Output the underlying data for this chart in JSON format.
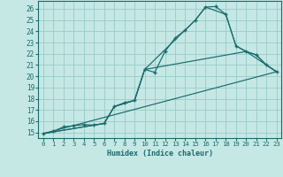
{
  "xlabel": "Humidex (Indice chaleur)",
  "bg_color": "#c5e8e5",
  "grid_color": "#9ecece",
  "line_color": "#1a6b6b",
  "xlim": [
    -0.5,
    23.5
  ],
  "ylim": [
    14.5,
    26.7
  ],
  "xticks": [
    0,
    1,
    2,
    3,
    4,
    5,
    6,
    7,
    8,
    9,
    10,
    11,
    12,
    13,
    14,
    15,
    16,
    17,
    18,
    19,
    20,
    21,
    22,
    23
  ],
  "yticks": [
    15,
    16,
    17,
    18,
    19,
    20,
    21,
    22,
    23,
    24,
    25,
    26
  ],
  "series1_x": [
    0,
    1,
    2,
    3,
    4,
    5,
    6,
    7,
    8,
    9,
    10,
    11,
    12,
    13,
    14,
    15,
    16,
    17,
    18,
    19,
    20,
    21,
    22,
    23
  ],
  "series1_y": [
    14.9,
    15.1,
    15.5,
    15.6,
    15.7,
    15.65,
    15.8,
    17.3,
    17.65,
    17.85,
    20.6,
    20.35,
    22.2,
    23.4,
    24.1,
    25.0,
    26.15,
    26.2,
    25.5,
    22.7,
    22.2,
    21.9,
    21.0,
    20.4
  ],
  "series2_x": [
    0,
    6,
    7,
    9,
    10,
    15,
    16,
    18,
    19,
    20,
    23
  ],
  "series2_y": [
    14.9,
    15.8,
    17.3,
    17.85,
    20.6,
    25.0,
    26.15,
    25.5,
    22.7,
    22.2,
    20.4
  ],
  "series3_x": [
    0,
    6,
    7,
    9,
    10,
    20,
    21,
    22,
    23
  ],
  "series3_y": [
    14.9,
    15.8,
    17.3,
    17.85,
    20.6,
    22.2,
    21.9,
    21.0,
    20.4
  ],
  "series4_x": [
    0,
    23
  ],
  "series4_y": [
    14.9,
    20.4
  ]
}
